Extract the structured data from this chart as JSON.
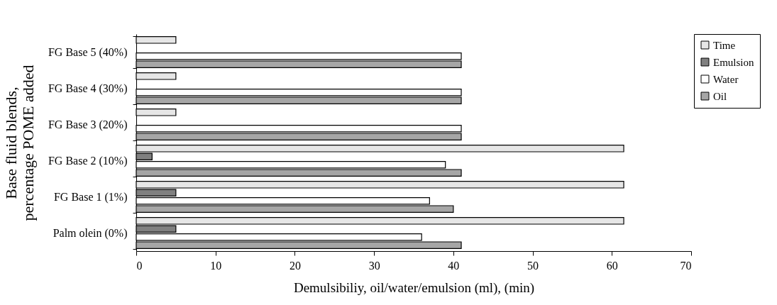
{
  "chart_data": {
    "type": "bar",
    "orientation": "horizontal",
    "categories": [
      "FG Base 5 (40%)",
      "FG Base 4 (30%)",
      "FG Base 3 (20%)",
      "FG Base 2 (10%)",
      "FG Base 1 (1%)",
      "Palm olein (0%)"
    ],
    "series": [
      {
        "name": "Time",
        "color": "#e6e6e6",
        "values": [
          5,
          5,
          5,
          61.5,
          61.5,
          61.5
        ]
      },
      {
        "name": "Emulsion",
        "color": "#808080",
        "values": [
          null,
          null,
          null,
          2,
          5,
          5
        ]
      },
      {
        "name": "Water",
        "color": "#ffffff",
        "values": [
          41,
          41,
          41,
          39,
          37,
          36
        ]
      },
      {
        "name": "Oil",
        "color": "#a6a6a6",
        "values": [
          41,
          41,
          41,
          41,
          40,
          41
        ]
      }
    ],
    "xlabel": "Demulsibiliy, oil/water/emulsion (ml), (min)",
    "ylabel": "Base fluid blends,\npercentage POME added",
    "xlim": [
      0,
      70
    ],
    "xticks": [
      0,
      10,
      20,
      30,
      40,
      50,
      60,
      70
    ],
    "grid": false,
    "legend": "right"
  }
}
